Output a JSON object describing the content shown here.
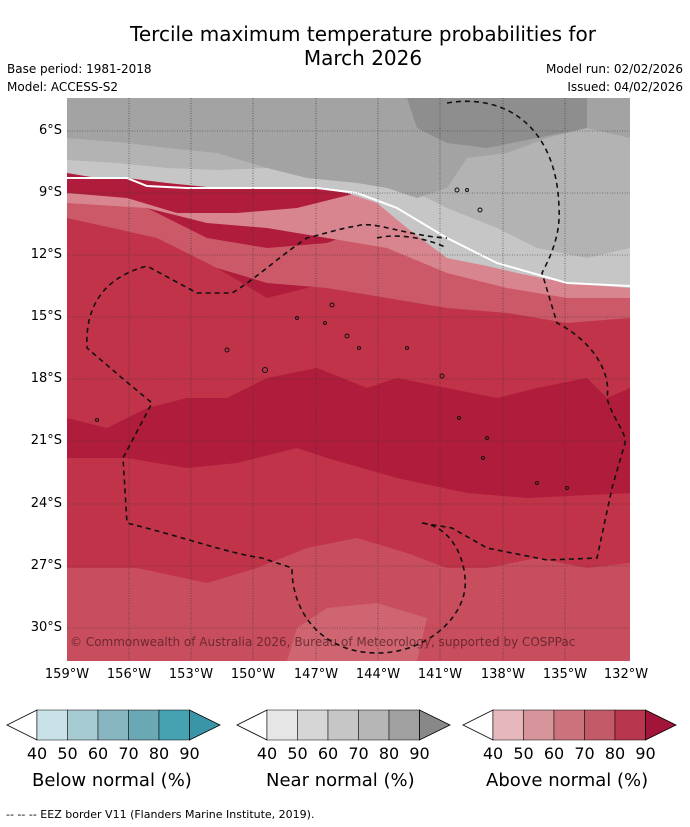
{
  "title_line1": "Tercile maximum temperature probabilities for",
  "title_line2": "March 2026",
  "meta": {
    "base_period": "Base period: 1981-2018",
    "model": "Model: ACCESS-S2",
    "model_run": "Model run: 02/02/2026",
    "issued": "Issued: 04/02/2026"
  },
  "map": {
    "copyright": "© Commonwealth of Australia 2026, Bureau of Meteorology, supported by COSPPac",
    "lat_labels": [
      "6°S",
      "9°S",
      "12°S",
      "15°S",
      "18°S",
      "21°S",
      "24°S",
      "27°S",
      "30°S"
    ],
    "lon_labels": [
      "159°W",
      "156°W",
      "153°W",
      "150°W",
      "147°W",
      "144°W",
      "141°W",
      "138°W",
      "135°W",
      "132°W"
    ]
  },
  "legends": [
    {
      "caption": "Below normal (%)",
      "ticks": [
        "40",
        "50",
        "60",
        "70",
        "80",
        "90"
      ],
      "colors": [
        "#ffffff",
        "#c8e2e8",
        "#a6cbd2",
        "#87b6c1",
        "#6aa8b6",
        "#46a1b1",
        "#3896a7"
      ]
    },
    {
      "caption": "Near normal (%)",
      "ticks": [
        "40",
        "50",
        "60",
        "70",
        "80",
        "90"
      ],
      "colors": [
        "#ffffff",
        "#e6e6e6",
        "#d6d6d6",
        "#c6c6c6",
        "#b6b6b6",
        "#a0a0a0",
        "#888888"
      ]
    },
    {
      "caption": "Above normal (%)",
      "ticks": [
        "40",
        "50",
        "60",
        "70",
        "80",
        "90"
      ],
      "colors": [
        "#ffffff",
        "#e6b7bd",
        "#d6959b",
        "#cb727d",
        "#c35a67",
        "#b8364e",
        "#a3143b"
      ]
    }
  ],
  "footer": "--  --  -- EEZ border V11 (Flanders Marine Institute, 2019)."
}
